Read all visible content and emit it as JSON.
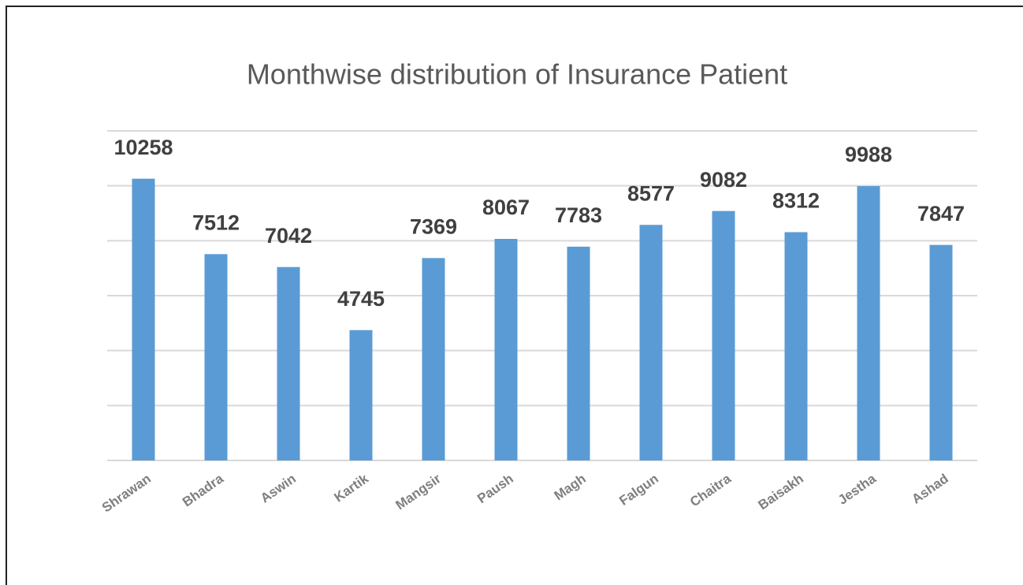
{
  "chart_data": {
    "type": "bar",
    "title": "Monthwise distribution of Insurance  Patient",
    "categories": [
      "Shrawan",
      "Bhadra",
      "Aswin",
      "Kartik",
      "Mangsir",
      "Paush",
      "Magh",
      "Falgun",
      "Chaitra",
      "Baisakh",
      "Jestha",
      "Ashad"
    ],
    "values": [
      10258,
      7512,
      7042,
      4745,
      7369,
      8067,
      7783,
      8577,
      9082,
      8312,
      9988,
      7847
    ],
    "color": "#5b9bd5",
    "ylim": [
      0,
      12000
    ],
    "yticks": [
      0,
      2000,
      4000,
      6000,
      8000,
      10000,
      12000
    ],
    "grid": true
  }
}
